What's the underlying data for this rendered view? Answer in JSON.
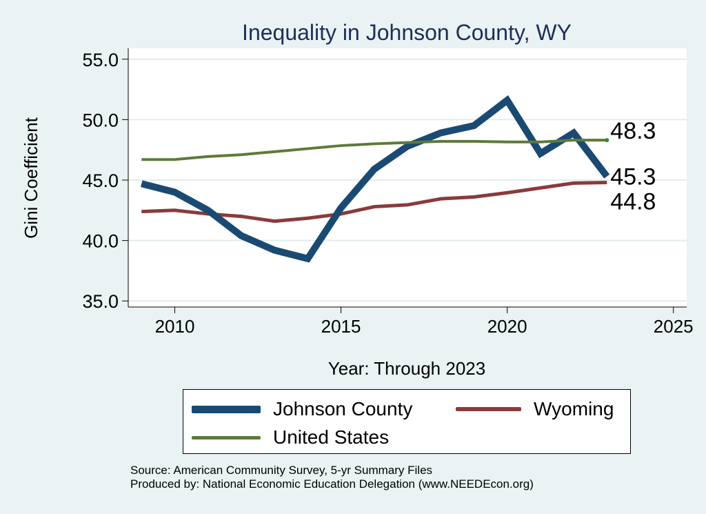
{
  "chart_data": {
    "type": "line",
    "title": "Inequality in Johnson County, WY",
    "xlabel": "Year: Through 2023",
    "ylabel": "Gini Coefficient",
    "xlim": [
      2008.6,
      2025.4
    ],
    "ylim": [
      34.5,
      55.9
    ],
    "x_ticks": [
      2010,
      2015,
      2020,
      2025
    ],
    "x_tick_labels": [
      "2010",
      "2015",
      "2020",
      "2025"
    ],
    "y_ticks": [
      35,
      40,
      45,
      50,
      55
    ],
    "y_tick_labels": [
      "35.0",
      "40.0",
      "45.0",
      "50.0",
      "55.0"
    ],
    "grid": true,
    "legend_position": "bottom",
    "x": [
      2009,
      2010,
      2011,
      2012,
      2013,
      2014,
      2015,
      2016,
      2017,
      2018,
      2019,
      2020,
      2021,
      2022,
      2023
    ],
    "series": [
      {
        "name": "Johnson County",
        "color": "#1a4a72",
        "values": [
          44.7,
          44.0,
          42.5,
          40.4,
          39.2,
          38.5,
          42.7,
          45.9,
          47.8,
          48.9,
          49.5,
          51.6,
          47.2,
          48.9,
          45.3
        ],
        "end_label": "45.3"
      },
      {
        "name": "Wyoming",
        "color": "#8b3a3a",
        "values": [
          42.4,
          42.5,
          42.2,
          42.0,
          41.6,
          41.85,
          42.2,
          42.8,
          42.95,
          43.45,
          43.6,
          43.95,
          44.35,
          44.75,
          44.8
        ],
        "end_label": "44.8"
      },
      {
        "name": "United States",
        "color": "#5d7a3a",
        "values": [
          46.7,
          46.7,
          46.95,
          47.1,
          47.35,
          47.6,
          47.85,
          48.0,
          48.1,
          48.2,
          48.2,
          48.15,
          48.15,
          48.3,
          48.3
        ],
        "end_label": "48.3"
      }
    ]
  },
  "legend": {
    "items": [
      {
        "name": "Johnson County",
        "color": "#1a4a72"
      },
      {
        "name": "Wyoming",
        "color": "#8b3a3a"
      },
      {
        "name": "United States",
        "color": "#5d7a3a"
      }
    ]
  },
  "source": {
    "line1": "Source: American Community Survey, 5-yr Summary Files",
    "line2": "Produced by: National Economic Education Delegation (www.NEEDEcon.org)"
  }
}
